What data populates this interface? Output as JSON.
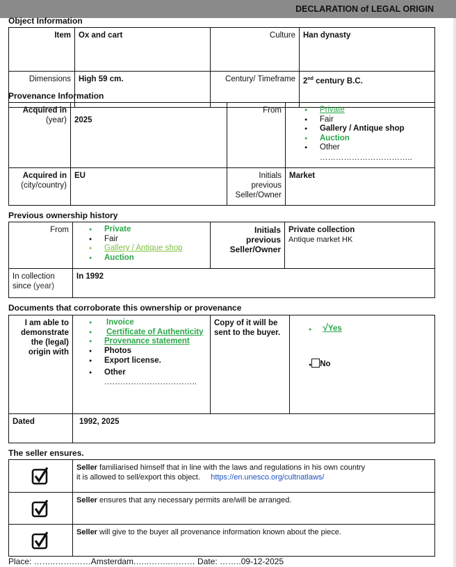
{
  "header": {
    "title": "DECLARATION of LEGAL ORIGIN"
  },
  "object_info": {
    "title": "Object Information",
    "item_label": "Item",
    "item": "Ox and cart",
    "culture_label": "Culture",
    "culture": "Han dynasty",
    "dimensions_label": "Dimensions",
    "dimensions": "High 59 cm.",
    "timeframe_label": "Century/ Timeframe",
    "timeframe_num": "2",
    "timeframe_sup": "nd",
    "timeframe_rest": " century B.C."
  },
  "provenance": {
    "title": "Provenance Information",
    "acq_year_label": "Acquired in",
    "acq_year_sub": "(year)",
    "acq_year": "2025",
    "from_label": "From",
    "from_options": [
      {
        "label": "Private",
        "selected": true
      },
      {
        "label": "Fair",
        "selected": false
      },
      {
        "label": "Gallery / Antique shop",
        "selected": false
      },
      {
        "label": "Auction",
        "selected": true
      },
      {
        "label": "Other",
        "selected": false
      }
    ],
    "dots": "……………………………..",
    "acq_place_label": "Acquired in",
    "acq_place_sub": "(city/country)",
    "acq_place": "EU",
    "initials_label_1": "Initials",
    "initials_label_2": "previous",
    "initials_label_3": "Seller/Owner",
    "initials": "Market"
  },
  "history": {
    "title": "Previous ownership history",
    "from_label": "From",
    "from_options": [
      "Private",
      "Fair",
      "Gallery / Antique shop",
      "Auction"
    ],
    "initials_label_1": "Initials",
    "initials_label_2": "previous",
    "initials_label_3": "Seller/Owner",
    "initials_1": "Private collection",
    "initials_2": "Antique market HK",
    "since_label_1": "In collection",
    "since_label_2": "since",
    "since_label_3": " (year)",
    "since": "In 1992"
  },
  "documents": {
    "title": "Documents that corroborate this ownership or provenance",
    "label": "I am able to demonstrate the (legal) origin with",
    "items": [
      "Invoice",
      "Certificate of Authenticity",
      "Provenance statement",
      "Photos",
      "Export license.",
      "Other"
    ],
    "dots": "……………………………..",
    "copy_label": "Copy of it will be sent to the buyer.",
    "yes_mark": "√",
    "yes": "Yes",
    "no": "No",
    "dated_label": "Dated",
    "dated": "1992, 2025"
  },
  "seller": {
    "title": "The seller ensures.",
    "rows": [
      {
        "bold": "Seller",
        "text": " familiarised himself that in line with the laws and regulations in his own country",
        "text2": "it is allowed to sell/export this object.",
        "link": "https://en.unesco.org/cultnatlaws/"
      },
      {
        "bold": "Seller",
        "text": " ensures that any necessary permits are/will be arranged."
      },
      {
        "bold": "Seller",
        "text": " will give to the buyer all provenance information known about the piece."
      }
    ]
  },
  "footer": {
    "text": "Place: ……..…….……Amsterdam.…..……..……… Date: ……..09-12-2025"
  },
  "colors": {
    "selected_green": "#2aa748",
    "light_green": "#7ec242",
    "link_blue": "#1a4fbf"
  }
}
